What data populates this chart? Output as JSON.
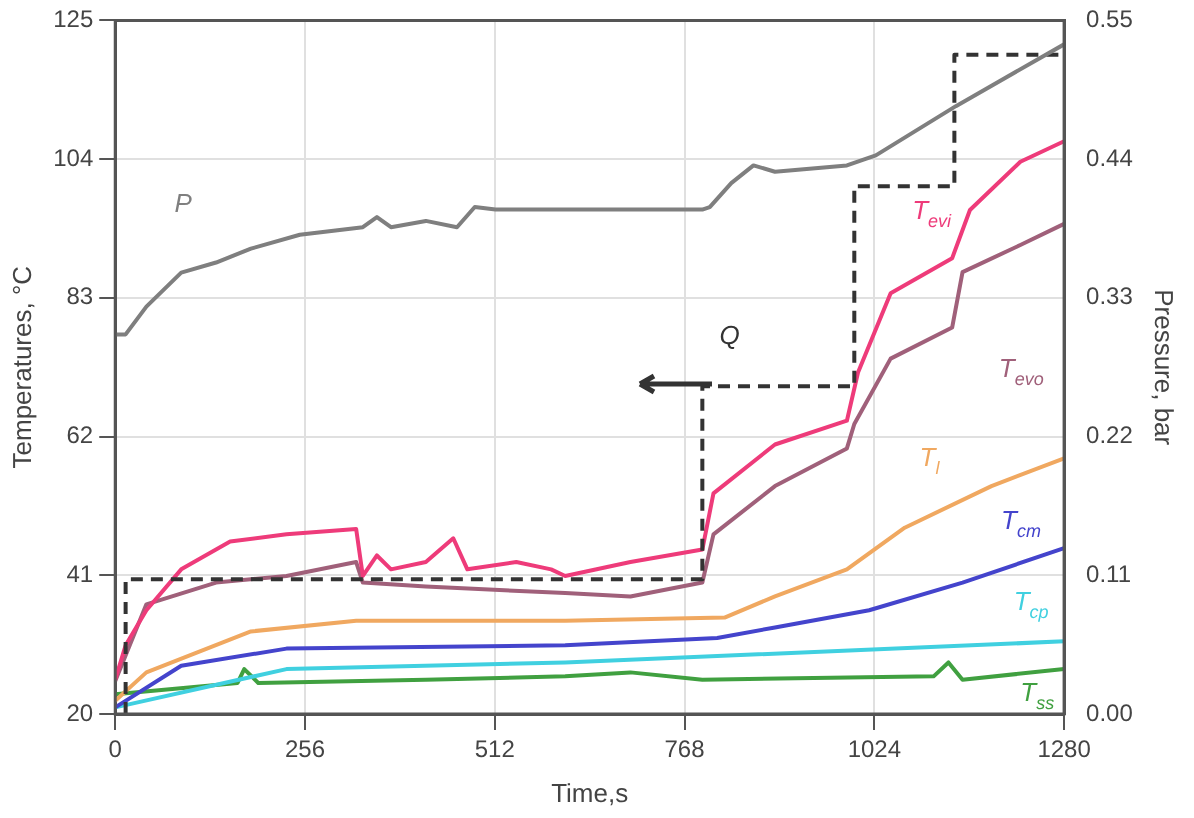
{
  "chart_data": {
    "type": "line",
    "xlabel": "Time,s",
    "ylabel": "Temperatures, °C",
    "y2label": "Pressure, bar",
    "xlim": [
      0,
      1280
    ],
    "xticks": [
      0,
      256,
      512,
      768,
      1024,
      1280
    ],
    "ylim": [
      20,
      125
    ],
    "yticks": [
      20,
      41,
      62,
      83,
      104,
      125
    ],
    "y2lim": [
      0,
      0.55
    ],
    "y2ticks": [
      {
        "value": 0,
        "label": "0.00"
      },
      0.11,
      0.22,
      0.33,
      0.44,
      0.55
    ],
    "grid": true,
    "legend": false,
    "series": [
      {
        "name": "P",
        "axis": "y2",
        "color": "#7f7f7f",
        "x": [
          0,
          14,
          42,
          89,
          136,
          183,
          249,
          334,
          353,
          372,
          419,
          461,
          485,
          513,
          607,
          695,
          792,
          802,
          831,
          861,
          890,
          987,
          1026,
          1134,
          1280
        ],
        "values": [
          0.301,
          0.301,
          0.323,
          0.35,
          0.358,
          0.369,
          0.38,
          0.386,
          0.394,
          0.386,
          0.391,
          0.386,
          0.402,
          0.4,
          0.4,
          0.4,
          0.4,
          0.402,
          0.421,
          0.435,
          0.43,
          0.435,
          0.443,
          0.482,
          0.531
        ]
      },
      {
        "name": "Q",
        "type": "step",
        "line_style": "dashed",
        "color": "#333333",
        "x": [
          14,
          14,
          792,
          997,
          1132,
          1280
        ],
        "values": [
          20,
          40.4,
          69.6,
          99.9,
          119.8,
          119.8
        ]
      },
      {
        "name": "T$_{evi}$",
        "color": "#ee3b7a",
        "x": [
          0,
          14,
          42,
          89,
          155,
          231,
          325,
          334,
          353,
          372,
          419,
          456,
          475,
          541,
          588,
          607,
          695,
          792,
          807,
          890,
          987,
          1002,
          1046,
          1129,
          1153,
          1221,
          1280
        ],
        "values": [
          25.2,
          30.4,
          35.7,
          41.9,
          46.1,
          47.2,
          48,
          40.9,
          44,
          41.9,
          43,
          46.6,
          41.9,
          43,
          41.9,
          40.9,
          43,
          44.9,
          53.4,
          60.8,
          64.4,
          71.7,
          83.7,
          89,
          96.3,
          103.6,
          106.7
        ]
      },
      {
        "name": "T$_{evo}$",
        "color": "#a0607a",
        "x": [
          0,
          42,
          136,
          231,
          325,
          334,
          419,
          607,
          695,
          792,
          807,
          890,
          987,
          997,
          1046,
          1129,
          1143,
          1221,
          1280
        ],
        "values": [
          25,
          36.6,
          39.9,
          40.9,
          43,
          39.9,
          39.3,
          38.3,
          37.8,
          39.9,
          47.2,
          54.5,
          60.2,
          63.9,
          73.8,
          78.5,
          86.9,
          91,
          94.2
        ]
      },
      {
        "name": "T$_{l}$",
        "color": "#f0a860",
        "x": [
          0,
          42,
          183,
          325,
          607,
          822,
          890,
          987,
          1065,
          1182,
          1280
        ],
        "values": [
          22,
          26.3,
          32.5,
          34.1,
          34.1,
          34.6,
          37.8,
          41.9,
          48.2,
          54.5,
          58.7
        ]
      },
      {
        "name": "T$_{cm}$",
        "color": "#4444cc",
        "x": [
          0,
          89,
          231,
          607,
          812,
          890,
          1017,
          1143,
          1280
        ],
        "values": [
          21,
          27.3,
          29.9,
          30.4,
          31.5,
          33.1,
          35.7,
          39.9,
          45.1
        ]
      },
      {
        "name": "T$_{cp}$",
        "color": "#40d0e0",
        "x": [
          0,
          231,
          607,
          1280
        ],
        "values": [
          21,
          26.8,
          27.8,
          31
        ]
      },
      {
        "name": "T$_{ss}$",
        "color": "#40a040",
        "x": [
          0,
          165,
          174,
          193,
          419,
          607,
          695,
          792,
          1104,
          1124,
          1143,
          1280
        ],
        "values": [
          23,
          24.7,
          26.8,
          24.7,
          25.2,
          25.7,
          26.3,
          25.2,
          25.7,
          27.8,
          25.2,
          26.8
        ]
      }
    ]
  }
}
